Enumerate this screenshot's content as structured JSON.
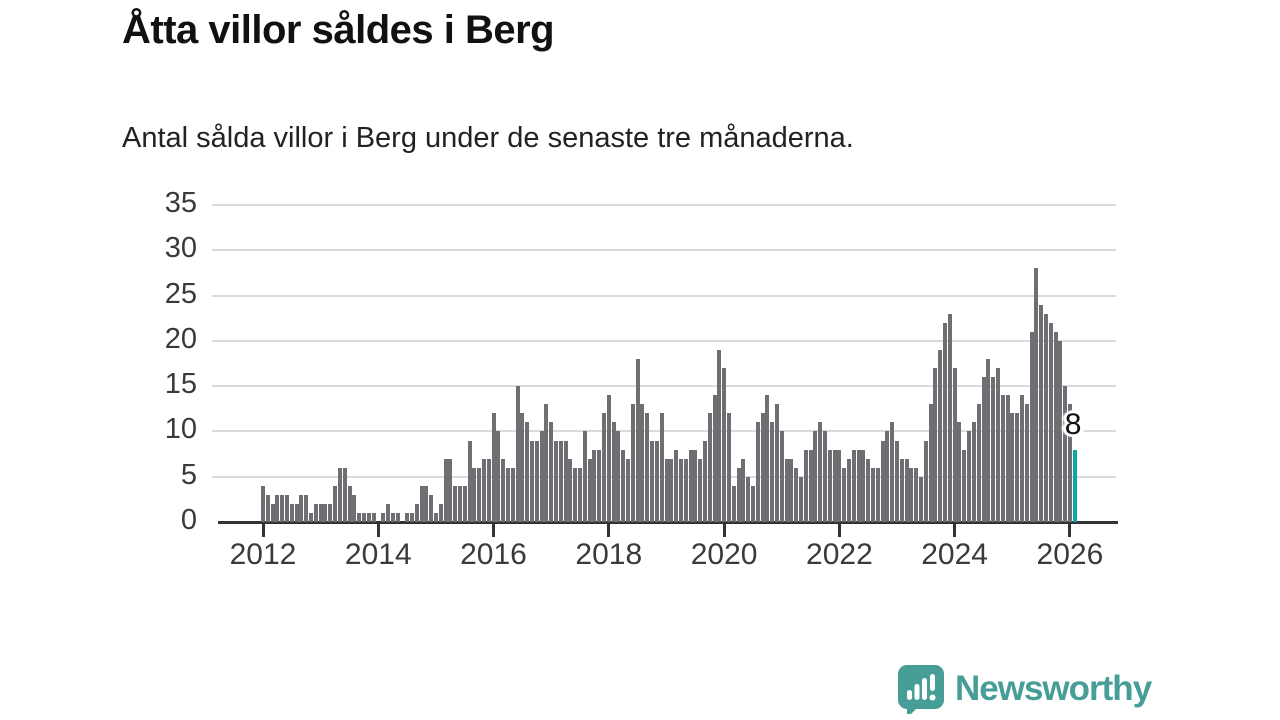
{
  "header": {
    "title": "Åtta villor såldes i Berg",
    "subtitle": "Antal sålda villor i Berg under de senaste tre månaderna."
  },
  "annotation": {
    "value_label": "8"
  },
  "branding": {
    "name": "Newsworthy",
    "icon": "bar-chart-speech-bubble-icon",
    "color": "#479e97"
  },
  "colors": {
    "bar": "#6e6e73",
    "highlight": "#0aa7a0",
    "axis": "#333333",
    "gridline": "#dadada",
    "text": "#3a3a3a"
  },
  "chart_data": {
    "type": "bar",
    "title": "Åtta villor såldes i Berg",
    "subtitle": "Antal sålda villor i Berg under de senaste tre månaderna.",
    "ylabel": "Antal sålda villor",
    "ylim": [
      0,
      35
    ],
    "yticks": [
      0,
      5,
      10,
      15,
      20,
      25,
      30,
      35
    ],
    "xtick_years": [
      "2012",
      "2014",
      "2016",
      "2018",
      "2020",
      "2022",
      "2024",
      "2026"
    ],
    "grid": "horizontal",
    "legend": "none",
    "start_month": "2012-01",
    "end_month": "2026-02",
    "highlight_last": {
      "value": 8,
      "label": "8"
    },
    "years": [
      {
        "year": "2012",
        "values": [
          4,
          3,
          2,
          3,
          3,
          3,
          2,
          2,
          3,
          3,
          1,
          2
        ]
      },
      {
        "year": "2013",
        "values": [
          2,
          2,
          2,
          4,
          6,
          6,
          4,
          3,
          1,
          1,
          1,
          1
        ]
      },
      {
        "year": "2014",
        "values": [
          0,
          1,
          2,
          1,
          1,
          0,
          1,
          1,
          2,
          4,
          4,
          3
        ]
      },
      {
        "year": "2015",
        "values": [
          1,
          2,
          7,
          7,
          4,
          4,
          4,
          9,
          6,
          6,
          7,
          7
        ]
      },
      {
        "year": "2016",
        "values": [
          12,
          10,
          7,
          6,
          6,
          15,
          12,
          11,
          9,
          9,
          10,
          13
        ]
      },
      {
        "year": "2017",
        "values": [
          11,
          9,
          9,
          9,
          7,
          6,
          6,
          10,
          7,
          8,
          8,
          12
        ]
      },
      {
        "year": "2018",
        "values": [
          14,
          11,
          10,
          8,
          7,
          13,
          18,
          13,
          12,
          9,
          9,
          12
        ]
      },
      {
        "year": "2019",
        "values": [
          7,
          7,
          8,
          7,
          7,
          8,
          8,
          7,
          9,
          12,
          14,
          19
        ]
      },
      {
        "year": "2020",
        "values": [
          17,
          12,
          4,
          6,
          7,
          5,
          4,
          11,
          12,
          14,
          11,
          13
        ]
      },
      {
        "year": "2021",
        "values": [
          10,
          7,
          7,
          6,
          5,
          8,
          8,
          10,
          11,
          10,
          8,
          8
        ]
      },
      {
        "year": "2022",
        "values": [
          8,
          6,
          7,
          8,
          8,
          8,
          7,
          6,
          6,
          9,
          10,
          11
        ]
      },
      {
        "year": "2023",
        "values": [
          9,
          7,
          7,
          6,
          6,
          5,
          9,
          13,
          17,
          19,
          22,
          23
        ]
      },
      {
        "year": "2024",
        "values": [
          17,
          11,
          8,
          10,
          11,
          13,
          16,
          18,
          16,
          17,
          14,
          14
        ]
      },
      {
        "year": "2025",
        "values": [
          12,
          12,
          14,
          13,
          21,
          28,
          24,
          23,
          22,
          21,
          20,
          15
        ]
      },
      {
        "year": "2026",
        "values": [
          13,
          8
        ]
      }
    ]
  }
}
